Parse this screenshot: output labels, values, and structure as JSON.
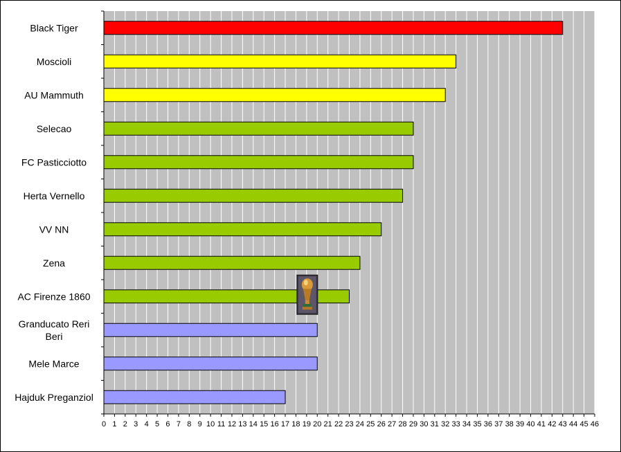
{
  "chart_data": {
    "type": "bar",
    "orientation": "horizontal",
    "title": "",
    "xlabel": "",
    "ylabel": "",
    "xlim": [
      0,
      46
    ],
    "x_ticks": [
      0,
      1,
      2,
      3,
      4,
      5,
      6,
      7,
      8,
      9,
      10,
      11,
      12,
      13,
      14,
      15,
      16,
      17,
      18,
      19,
      20,
      21,
      22,
      23,
      24,
      25,
      26,
      27,
      28,
      29,
      30,
      31,
      32,
      33,
      34,
      35,
      36,
      37,
      38,
      39,
      40,
      41,
      42,
      43,
      44,
      45,
      46
    ],
    "grid": true,
    "plot_background": "#c0c0c0",
    "gridline_color": "#ffffff",
    "categories": [
      "Black Tiger",
      "Moscioli",
      "AU Mammuth",
      "Selecao",
      "FC Pasticciotto",
      "Herta Vernello",
      "VV NN",
      "Zena",
      "AC Firenze 1860",
      "Granducato Reri Beri",
      "Mele Marce",
      "Hajduk Preganziol"
    ],
    "category_label_lines": [
      [
        "Black Tiger"
      ],
      [
        "Moscioli"
      ],
      [
        "AU Mammuth"
      ],
      [
        "Selecao"
      ],
      [
        "FC Pasticciotto"
      ],
      [
        "Herta Vernello"
      ],
      [
        "VV NN"
      ],
      [
        "Zena"
      ],
      [
        "AC Firenze 1860"
      ],
      [
        "Granducato Reri",
        "Beri"
      ],
      [
        "Mele Marce"
      ],
      [
        "Hajduk Preganziol"
      ]
    ],
    "values": [
      43,
      33,
      32,
      29,
      29,
      28,
      26,
      24,
      23,
      20,
      20,
      17
    ],
    "bar_colors": [
      "#ff0000",
      "#ffff00",
      "#ffff00",
      "#99cc00",
      "#99cc00",
      "#99cc00",
      "#99cc00",
      "#99cc00",
      "#99cc00",
      "#9999ff",
      "#9999ff",
      "#9999ff"
    ],
    "annotation": {
      "icon": "trophy-icon",
      "category": "AC Firenze 1860",
      "x_value": 19
    }
  }
}
